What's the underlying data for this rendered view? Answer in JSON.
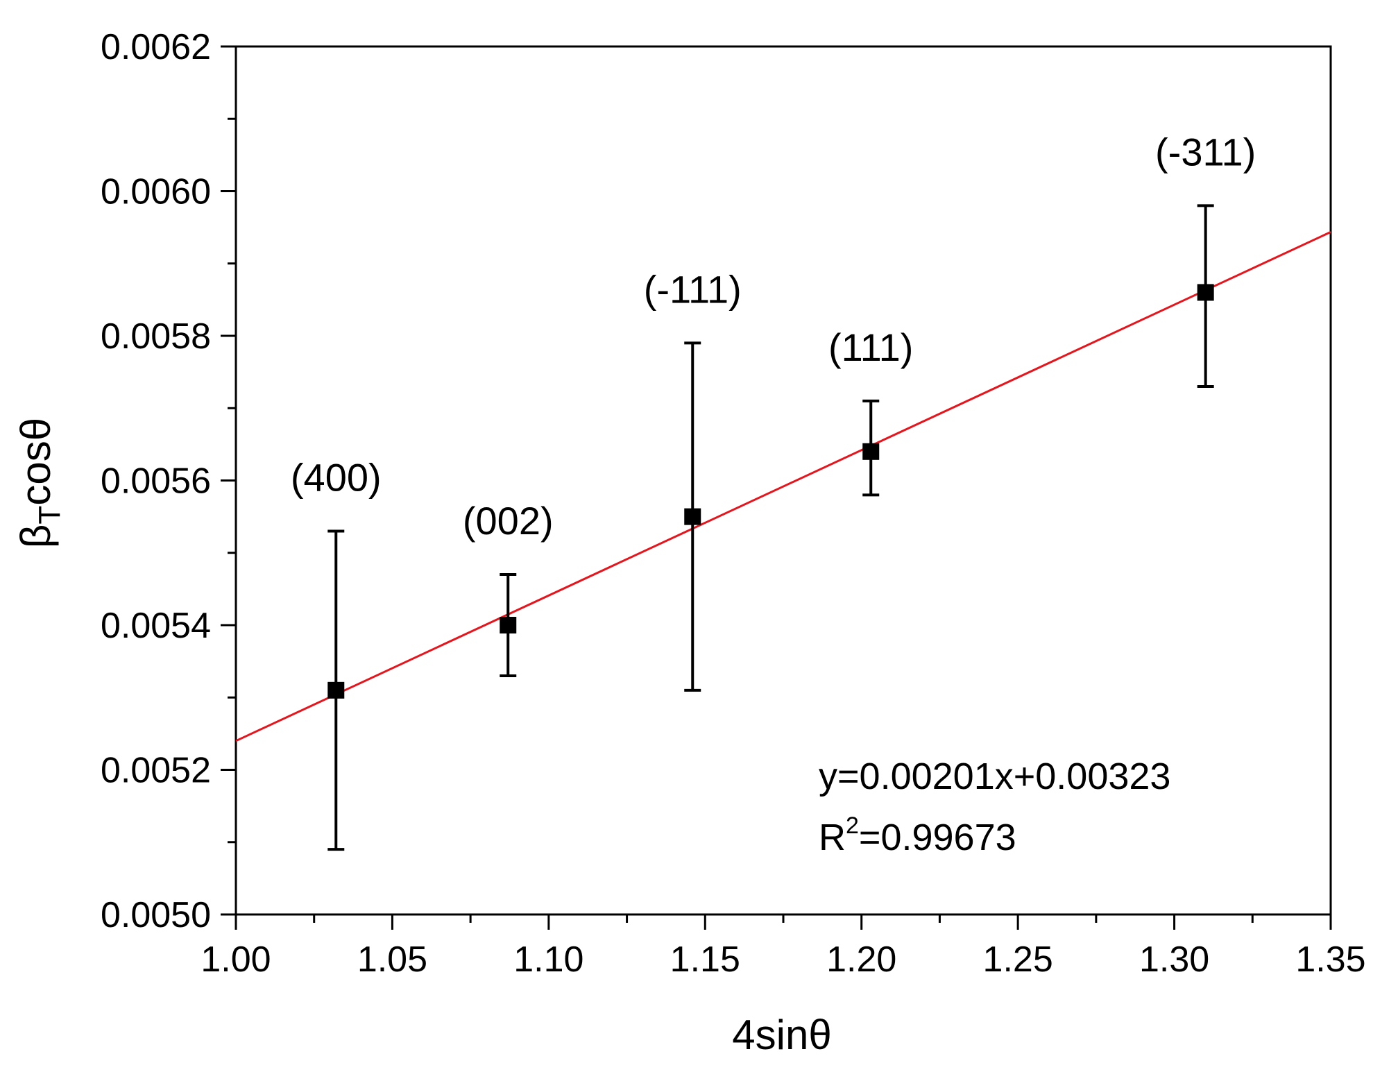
{
  "chart_data": {
    "type": "scatter",
    "xlabel": "4sinθ",
    "ylabel_main": "β",
    "ylabel_sub": "T",
    "ylabel_rest": "cosθ",
    "xlim": [
      1.0,
      1.35
    ],
    "ylim": [
      0.005,
      0.0062
    ],
    "x_ticks": [
      1.0,
      1.05,
      1.1,
      1.15,
      1.2,
      1.25,
      1.3,
      1.35
    ],
    "x_tick_labels": [
      "1.00",
      "1.05",
      "1.10",
      "1.15",
      "1.20",
      "1.25",
      "1.30",
      "1.35"
    ],
    "y_ticks": [
      0.005,
      0.0052,
      0.0054,
      0.0056,
      0.0058,
      0.006,
      0.0062
    ],
    "y_tick_labels": [
      "0.0050",
      "0.0052",
      "0.0054",
      "0.0056",
      "0.0058",
      "0.0060",
      "0.0062"
    ],
    "grid": false,
    "points": [
      {
        "label": "(400)",
        "x": 1.032,
        "y": 0.00531,
        "err_low": 0.00509,
        "err_high": 0.00553
      },
      {
        "label": "(002)",
        "x": 1.087,
        "y": 0.0054,
        "err_low": 0.00533,
        "err_high": 0.00547
      },
      {
        "label": "(-111)",
        "x": 1.146,
        "y": 0.00555,
        "err_low": 0.00531,
        "err_high": 0.00579
      },
      {
        "label": "(111)",
        "x": 1.203,
        "y": 0.00564,
        "err_low": 0.00558,
        "err_high": 0.00571
      },
      {
        "label": "(-311)",
        "x": 1.31,
        "y": 0.00586,
        "err_low": 0.00573,
        "err_high": 0.00598
      }
    ],
    "fit": {
      "slope": 0.00201,
      "intercept": 0.00323,
      "color": "#e8141c",
      "equation": "y=0.00201x+0.00323",
      "r2_prefix": "R",
      "r2_sup": "2",
      "r2_value": "=0.99673"
    },
    "marker_color": "#000000"
  }
}
